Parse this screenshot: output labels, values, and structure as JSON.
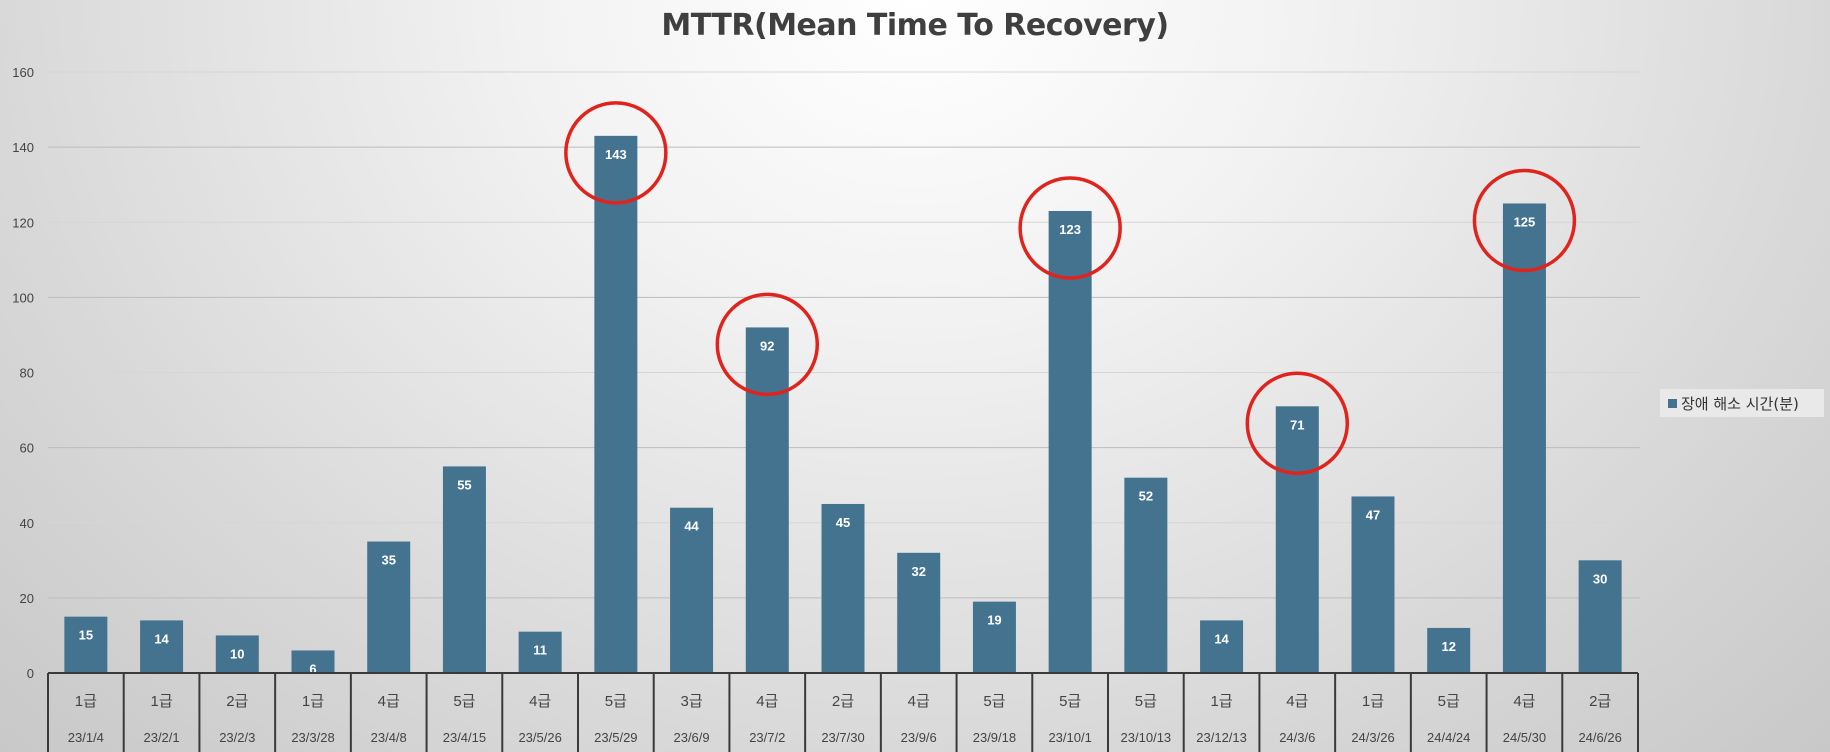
{
  "chart_data": {
    "type": "bar",
    "title": "MTTR(Mean Time To Recovery)",
    "categories": [
      "23/1/4",
      "23/2/1",
      "23/2/3",
      "23/3/28",
      "23/4/8",
      "23/4/15",
      "23/5/26",
      "23/5/29",
      "23/6/9",
      "23/7/2",
      "23/7/30",
      "23/9/6",
      "23/9/18",
      "23/10/1",
      "23/10/13",
      "23/12/13",
      "24/3/6",
      "24/3/26",
      "24/4/24",
      "24/5/30",
      "24/6/26"
    ],
    "grades": [
      "1급",
      "1급",
      "2급",
      "1급",
      "4급",
      "5급",
      "4급",
      "5급",
      "3급",
      "4급",
      "2급",
      "4급",
      "5급",
      "5급",
      "5급",
      "1급",
      "4급",
      "1급",
      "5급",
      "4급",
      "2급"
    ],
    "series": [
      {
        "name": "장애 해소 시간(분)",
        "values": [
          15,
          14,
          10,
          6,
          35,
          55,
          11,
          143,
          44,
          92,
          45,
          32,
          19,
          123,
          52,
          14,
          71,
          47,
          12,
          125,
          30
        ],
        "color": "#44738f"
      }
    ],
    "highlighted": [
      "23/5/29",
      "23/7/2",
      "23/10/1",
      "24/3/6",
      "24/5/30"
    ],
    "highlight_color": "#e0231c",
    "ylim": [
      0,
      160
    ],
    "yticks": [
      0,
      20,
      40,
      60,
      80,
      100,
      120,
      140,
      160
    ],
    "grid": true,
    "legend_position": "right"
  }
}
